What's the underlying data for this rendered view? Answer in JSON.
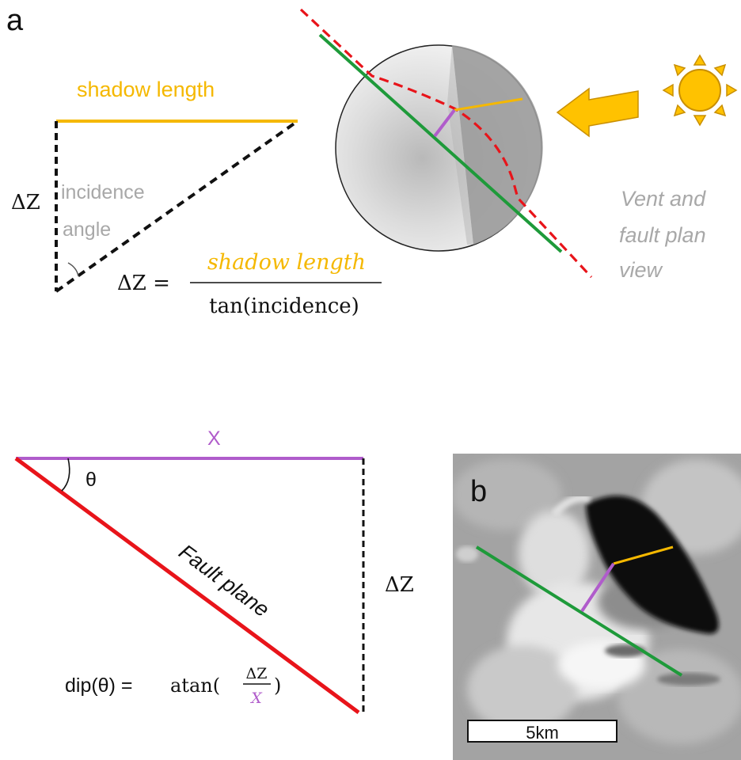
{
  "panel_a": {
    "label": "a",
    "shadow_length_label": "shadow length",
    "delta_z_label": "ΔZ",
    "incidence_label_line1": "incidence",
    "incidence_label_line2": "angle",
    "equation": {
      "lhs": "ΔZ =",
      "numerator": "shadow length",
      "denominator": "tan(incidence)"
    },
    "plan_view_caption": [
      "Vent and",
      "fault plan",
      "view"
    ]
  },
  "panel_lower": {
    "x_label": "X",
    "theta_label": "θ",
    "fault_plane_label": "Fault plane",
    "delta_z_label": "ΔZ",
    "dip_equation": {
      "prefix": "dip(θ) =",
      "func": "atan(",
      "numerator": "ΔZ",
      "denominator": "X",
      "suffix": ")"
    }
  },
  "panel_b": {
    "label": "b",
    "scale_bar_label": "5km"
  },
  "colors": {
    "shadow": "#F5B800",
    "dip_purple": "#B05CCB",
    "fault_red": "#E8141A",
    "fault_trace_green": "#1E9A3A",
    "grey_text": "#A8A8A8",
    "sun": "#FFC200",
    "arrow": "#FFC200"
  },
  "icons": {
    "sun": "sun-icon",
    "arrow": "left-arrow-icon"
  }
}
